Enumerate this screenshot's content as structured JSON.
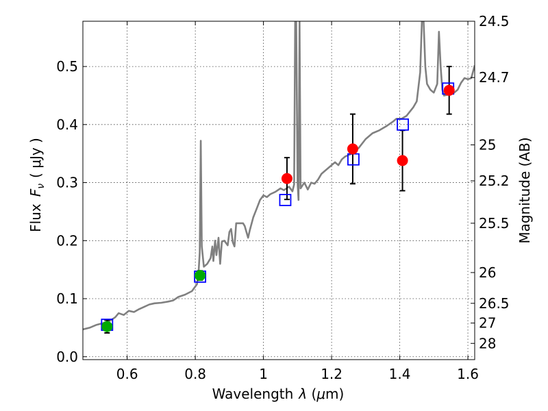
{
  "chart_data": {
    "type": "scatter",
    "xlabel": "Wavelength",
    "xlabel_symbol": "λ",
    "xlabel_unit_prefix": " (",
    "xlabel_unit_mu": "μ",
    "xlabel_unit": "m)",
    "ylabel_prefix": "Flux",
    "ylabel_symbol": "F",
    "ylabel_sub": "ν",
    "ylabel_unit": "( μJy )",
    "y2label": "Magnitude (AB)",
    "xlim": [
      0.47,
      1.62
    ],
    "ylim": [
      -0.005,
      0.578
    ],
    "grid": true,
    "x_ticks": [
      0.6,
      0.8,
      1.0,
      1.2,
      1.4,
      1.6
    ],
    "x_tick_labels": [
      "0.6",
      "0.8",
      "1",
      "1.2",
      "1.4",
      "1.6"
    ],
    "y_ticks": [
      0.0,
      0.1,
      0.2,
      0.3,
      0.4,
      0.5
    ],
    "y_tick_labels": [
      "0.0",
      "0.1",
      "0.2",
      "0.3",
      "0.4",
      "0.5"
    ],
    "y2_ticks": [
      {
        "label": "24.5",
        "flux": 0.578
      },
      {
        "label": "24.7",
        "flux": 0.481
      },
      {
        "label": "25",
        "flux": 0.365
      },
      {
        "label": "25.2",
        "flux": 0.303
      },
      {
        "label": "25.5",
        "flux": 0.23
      },
      {
        "label": "26",
        "flux": 0.145
      },
      {
        "label": "26.5",
        "flux": 0.092
      },
      {
        "label": "27",
        "flux": 0.058
      },
      {
        "label": "28",
        "flux": 0.023
      }
    ],
    "series": [
      {
        "name": "model-spectrum",
        "kind": "line",
        "color": "#808080",
        "points": [
          [
            0.47,
            0.047
          ],
          [
            0.49,
            0.05
          ],
          [
            0.51,
            0.055
          ],
          [
            0.53,
            0.058
          ],
          [
            0.55,
            0.062
          ],
          [
            0.565,
            0.068
          ],
          [
            0.575,
            0.075
          ],
          [
            0.59,
            0.072
          ],
          [
            0.605,
            0.079
          ],
          [
            0.62,
            0.077
          ],
          [
            0.635,
            0.082
          ],
          [
            0.65,
            0.086
          ],
          [
            0.665,
            0.09
          ],
          [
            0.68,
            0.092
          ],
          [
            0.7,
            0.093
          ],
          [
            0.72,
            0.095
          ],
          [
            0.735,
            0.097
          ],
          [
            0.75,
            0.103
          ],
          [
            0.77,
            0.107
          ],
          [
            0.79,
            0.113
          ],
          [
            0.805,
            0.125
          ],
          [
            0.81,
            0.15
          ],
          [
            0.813,
            0.18
          ],
          [
            0.816,
            0.372
          ],
          [
            0.819,
            0.19
          ],
          [
            0.825,
            0.155
          ],
          [
            0.835,
            0.16
          ],
          [
            0.845,
            0.17
          ],
          [
            0.85,
            0.19
          ],
          [
            0.853,
            0.165
          ],
          [
            0.858,
            0.2
          ],
          [
            0.862,
            0.175
          ],
          [
            0.868,
            0.205
          ],
          [
            0.873,
            0.16
          ],
          [
            0.878,
            0.198
          ],
          [
            0.885,
            0.2
          ],
          [
            0.895,
            0.192
          ],
          [
            0.9,
            0.215
          ],
          [
            0.905,
            0.22
          ],
          [
            0.91,
            0.197
          ],
          [
            0.915,
            0.19
          ],
          [
            0.92,
            0.23
          ],
          [
            0.93,
            0.23
          ],
          [
            0.94,
            0.23
          ],
          [
            0.945,
            0.225
          ],
          [
            0.955,
            0.205
          ],
          [
            0.96,
            0.218
          ],
          [
            0.97,
            0.24
          ],
          [
            0.98,
            0.255
          ],
          [
            0.99,
            0.27
          ],
          [
            1.0,
            0.278
          ],
          [
            1.01,
            0.275
          ],
          [
            1.02,
            0.28
          ],
          [
            1.035,
            0.284
          ],
          [
            1.05,
            0.29
          ],
          [
            1.06,
            0.287
          ],
          [
            1.075,
            0.293
          ],
          [
            1.085,
            0.285
          ],
          [
            1.09,
            0.297
          ],
          [
            1.093,
            0.578
          ],
          [
            1.096,
            0.578
          ],
          [
            1.1,
            0.3
          ],
          [
            1.103,
            0.27
          ],
          [
            1.106,
            0.578
          ],
          [
            1.109,
            0.29
          ],
          [
            1.12,
            0.3
          ],
          [
            1.13,
            0.288
          ],
          [
            1.14,
            0.3
          ],
          [
            1.15,
            0.298
          ],
          [
            1.16,
            0.305
          ],
          [
            1.17,
            0.315
          ],
          [
            1.18,
            0.32
          ],
          [
            1.19,
            0.325
          ],
          [
            1.2,
            0.33
          ],
          [
            1.21,
            0.335
          ],
          [
            1.22,
            0.33
          ],
          [
            1.23,
            0.34
          ],
          [
            1.24,
            0.345
          ],
          [
            1.26,
            0.35
          ],
          [
            1.28,
            0.36
          ],
          [
            1.3,
            0.375
          ],
          [
            1.32,
            0.385
          ],
          [
            1.34,
            0.39
          ],
          [
            1.36,
            0.397
          ],
          [
            1.38,
            0.405
          ],
          [
            1.39,
            0.41
          ],
          [
            1.4,
            0.41
          ],
          [
            1.405,
            0.41
          ],
          [
            1.42,
            0.415
          ],
          [
            1.44,
            0.43
          ],
          [
            1.45,
            0.44
          ],
          [
            1.46,
            0.49
          ],
          [
            1.465,
            0.578
          ],
          [
            1.47,
            0.578
          ],
          [
            1.475,
            0.5
          ],
          [
            1.48,
            0.47
          ],
          [
            1.49,
            0.46
          ],
          [
            1.5,
            0.455
          ],
          [
            1.51,
            0.47
          ],
          [
            1.515,
            0.56
          ],
          [
            1.52,
            0.5
          ],
          [
            1.525,
            0.46
          ],
          [
            1.53,
            0.45
          ],
          [
            1.545,
            0.452
          ],
          [
            1.56,
            0.455
          ],
          [
            1.57,
            0.46
          ],
          [
            1.58,
            0.472
          ],
          [
            1.59,
            0.48
          ],
          [
            1.6,
            0.478
          ],
          [
            1.61,
            0.48
          ],
          [
            1.62,
            0.502
          ]
        ]
      },
      {
        "name": "model-photometry",
        "kind": "open-square",
        "color": "#0000ff",
        "points": [
          [
            0.541,
            0.055
          ],
          [
            0.814,
            0.138
          ],
          [
            1.064,
            0.27
          ],
          [
            1.264,
            0.34
          ],
          [
            1.409,
            0.4
          ],
          [
            1.542,
            0.462
          ]
        ]
      },
      {
        "name": "detections-green",
        "kind": "filled-circle",
        "color": "#00aa00",
        "points": [
          [
            0.541,
            0.052,
            0.011
          ],
          [
            0.814,
            0.14,
            0.008
          ]
        ]
      },
      {
        "name": "detections-red",
        "kind": "filled-circle",
        "color": "#ff0000",
        "points": [
          [
            1.069,
            0.307,
            0.036
          ],
          [
            1.262,
            0.358,
            0.06
          ],
          [
            1.408,
            0.338,
            0.052
          ],
          [
            1.545,
            0.459,
            0.041
          ]
        ]
      }
    ]
  }
}
